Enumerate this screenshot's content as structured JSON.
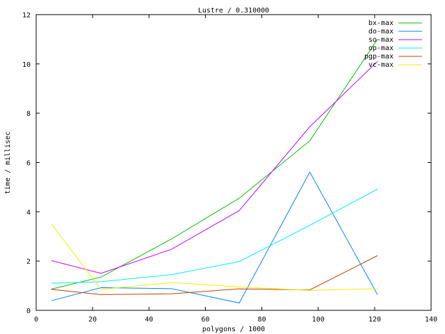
{
  "chart_data": {
    "type": "line",
    "title": "Lustre / 0.310000",
    "xlabel": "polygons / 1000",
    "ylabel": "time / millisec",
    "xlim": [
      0,
      140
    ],
    "ylim": [
      0,
      12
    ],
    "xticks": [
      0,
      20,
      40,
      60,
      80,
      100,
      120,
      140
    ],
    "yticks": [
      0,
      2,
      4,
      6,
      8,
      10,
      12
    ],
    "grid": false,
    "legend": "top-right",
    "x": [
      5.4,
      23,
      48,
      72,
      97,
      121
    ],
    "series": [
      {
        "name": "bx-max",
        "color": "#00c000",
        "values": [
          0.86,
          1.35,
          2.9,
          4.55,
          6.88,
          11.0
        ]
      },
      {
        "name": "do-max",
        "color": "#0080ff",
        "values": [
          0.39,
          0.92,
          0.88,
          0.3,
          5.61,
          0.64
        ]
      },
      {
        "name": "so-max",
        "color": "#c000ff",
        "values": [
          2.02,
          1.5,
          2.48,
          4.05,
          7.45,
          10.1
        ]
      },
      {
        "name": "op-max",
        "color": "#00eeee",
        "values": [
          1.1,
          1.16,
          1.45,
          1.98,
          3.45,
          4.92
        ]
      },
      {
        "name": "pgp-max",
        "color": "#c04000",
        "values": [
          0.85,
          0.64,
          0.67,
          0.87,
          0.83,
          2.22
        ]
      },
      {
        "name": "vc-max",
        "color": "#eeee00",
        "values": [
          3.51,
          0.85,
          1.13,
          0.95,
          0.81,
          0.88
        ]
      }
    ]
  }
}
